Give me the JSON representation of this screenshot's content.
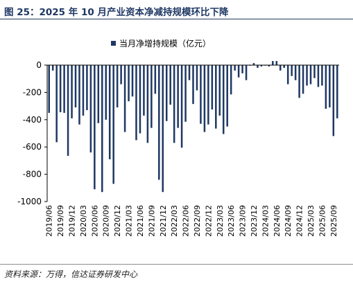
{
  "figure": {
    "title": "图 25：2025 年 10 月产业资本净减持规模环比下降",
    "source": "资料来源：万得，信达证券研发中心"
  },
  "colors": {
    "bar": "#1f3864",
    "title": "#1f3864",
    "axis": "#000000"
  },
  "chart_data": {
    "type": "bar",
    "series": [
      {
        "name": "当月净增持规模（亿元）",
        "x": [
          "2019/06",
          "2019/07",
          "2019/08",
          "2019/09",
          "2019/10",
          "2019/11",
          "2019/12",
          "2020/01",
          "2020/02",
          "2020/03",
          "2020/04",
          "2020/05",
          "2020/06",
          "2020/07",
          "2020/08",
          "2020/09",
          "2020/10",
          "2020/11",
          "2020/12",
          "2021/01",
          "2021/02",
          "2021/03",
          "2021/04",
          "2021/05",
          "2021/06",
          "2021/07",
          "2021/08",
          "2021/09",
          "2021/10",
          "2021/11",
          "2021/12",
          "2022/01",
          "2022/02",
          "2022/03",
          "2022/04",
          "2022/05",
          "2022/06",
          "2022/07",
          "2022/08",
          "2022/09",
          "2022/10",
          "2022/11",
          "2022/12",
          "2023/01",
          "2023/02",
          "2023/03",
          "2023/04",
          "2023/05",
          "2023/06",
          "2023/07",
          "2023/08",
          "2023/09",
          "2023/10",
          "2023/11",
          "2023/12",
          "2024/01",
          "2024/02",
          "2024/03",
          "2024/04",
          "2024/05",
          "2024/06",
          "2024/07",
          "2024/08",
          "2024/09",
          "2024/10",
          "2024/11",
          "2024/12",
          "2025/01",
          "2025/02",
          "2025/03",
          "2025/04",
          "2025/05",
          "2025/06",
          "2025/07",
          "2025/08",
          "2025/09",
          "2025/10"
        ],
        "values": [
          -350,
          -40,
          -565,
          -345,
          -350,
          -665,
          -390,
          -310,
          -435,
          -370,
          -330,
          -640,
          -910,
          -425,
          -930,
          -400,
          -690,
          -870,
          -310,
          -140,
          -490,
          -265,
          -230,
          -550,
          -500,
          -370,
          -570,
          -460,
          -210,
          -840,
          -930,
          -410,
          -290,
          -570,
          -460,
          -605,
          -415,
          -110,
          -285,
          -185,
          -430,
          -490,
          -435,
          -325,
          -465,
          -370,
          -505,
          -450,
          -215,
          -40,
          -90,
          -60,
          -110,
          0,
          15,
          -20,
          -10,
          0,
          -10,
          30,
          30,
          -40,
          -20,
          -140,
          -80,
          -110,
          -240,
          -210,
          -150,
          -140,
          -95,
          -160,
          -150,
          -320,
          -310,
          -520,
          -390
        ]
      }
    ],
    "x_tick_labels": [
      "2019/06",
      "2019/09",
      "2019/12",
      "2020/03",
      "2020/06",
      "2020/09",
      "2020/12",
      "2021/03",
      "2021/06",
      "2021/09",
      "2021/12",
      "2022/03",
      "2022/06",
      "2022/09",
      "2022/12",
      "2023/03",
      "2023/06",
      "2023/09",
      "2023/12",
      "2024/03",
      "2024/06",
      "2024/09",
      "2024/12",
      "2025/03",
      "2025/06",
      "2025/09"
    ],
    "y_ticks": [
      0,
      -200,
      -400,
      -600,
      -800,
      -1000
    ],
    "ylim": [
      -1000,
      0
    ],
    "legend_position": "top-center"
  }
}
